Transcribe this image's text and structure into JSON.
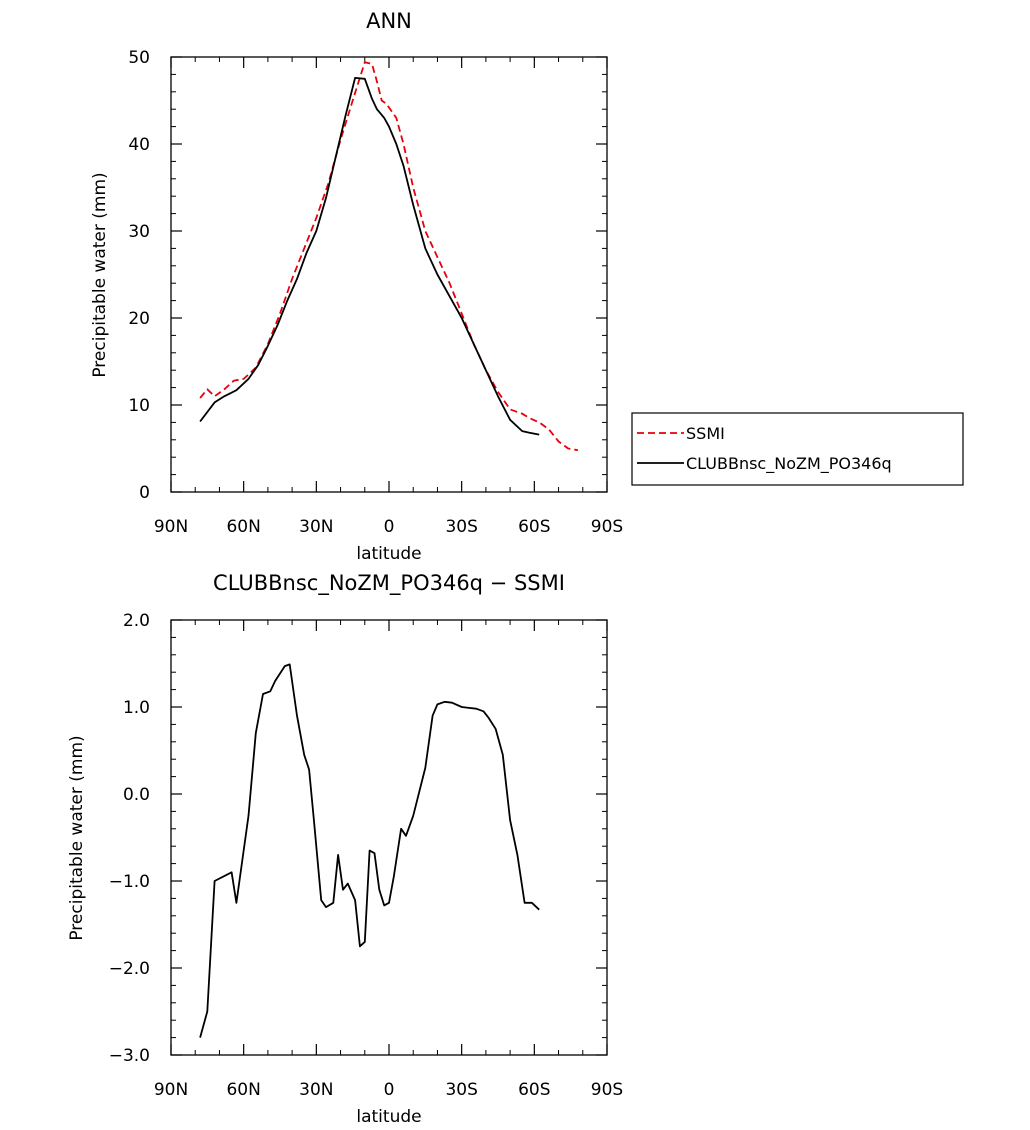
{
  "chart_data": [
    {
      "type": "line",
      "title": "ANN",
      "xlabel": "latitude",
      "ylabel": "Precipitable water (mm)",
      "xlim": [
        90,
        -90
      ],
      "ylim": [
        0,
        50
      ],
      "xticks": [
        {
          "value": 90,
          "label": "90N"
        },
        {
          "value": 60,
          "label": "60N"
        },
        {
          "value": 30,
          "label": "30N"
        },
        {
          "value": 0,
          "label": "0"
        },
        {
          "value": -30,
          "label": "30S"
        },
        {
          "value": -60,
          "label": "60S"
        },
        {
          "value": -90,
          "label": "90S"
        }
      ],
      "yticks": [
        {
          "value": 0,
          "label": "0"
        },
        {
          "value": 10,
          "label": "10"
        },
        {
          "value": 20,
          "label": "20"
        },
        {
          "value": 30,
          "label": "30"
        },
        {
          "value": 40,
          "label": "40"
        },
        {
          "value": 50,
          "label": "50"
        }
      ],
      "legend": {
        "placement": "right"
      },
      "series": [
        {
          "name": "SSMI",
          "color": "#e8000b",
          "style": "dashed",
          "x": [
            78,
            75,
            72,
            68,
            64,
            60,
            55,
            50,
            45,
            40,
            35,
            30,
            25,
            20,
            15,
            10,
            7,
            5,
            3,
            1,
            0,
            -3,
            -6,
            -10,
            -15,
            -20,
            -25,
            -30,
            -35,
            -40,
            -45,
            -50,
            -55,
            -58,
            -62,
            -66,
            -70,
            -74,
            -78
          ],
          "y": [
            10.8,
            11.8,
            11.0,
            11.8,
            12.8,
            13.0,
            14.3,
            17.0,
            20.5,
            24.5,
            28.0,
            31.5,
            35.5,
            40.5,
            45.0,
            49.4,
            49.2,
            47.2,
            45.0,
            44.6,
            44.2,
            43.0,
            40.0,
            35.0,
            30.0,
            27.0,
            24.0,
            20.5,
            17.0,
            14.0,
            11.5,
            9.5,
            9.0,
            8.5,
            8.0,
            7.2,
            5.8,
            5.0,
            4.8
          ]
        },
        {
          "name": "CLUBBnsc_NoZM_PO346q",
          "color": "#000000",
          "style": "solid",
          "x": [
            78,
            72,
            68,
            63,
            58,
            54,
            50,
            46,
            42,
            38,
            34,
            30,
            26,
            22,
            18,
            14,
            10,
            7,
            5,
            2,
            0,
            -3,
            -6,
            -10,
            -15,
            -20,
            -25,
            -30,
            -35,
            -40,
            -45,
            -50,
            -55,
            -58,
            -62
          ],
          "y": [
            8.1,
            10.3,
            11.0,
            11.7,
            13.0,
            14.6,
            16.8,
            19.2,
            22.0,
            24.5,
            27.5,
            30.0,
            33.8,
            38.5,
            43.2,
            47.6,
            47.5,
            45.2,
            44.0,
            43.0,
            42.0,
            40.0,
            37.5,
            33.0,
            28.0,
            25.0,
            22.5,
            20.0,
            17.0,
            14.0,
            11.0,
            8.3,
            7.0,
            6.8,
            6.6
          ]
        }
      ]
    },
    {
      "type": "line",
      "title": "CLUBBnsc_NoZM_PO346q − SSMI",
      "xlabel": "latitude",
      "ylabel": "Precipitable water (mm)",
      "xlim": [
        90,
        -90
      ],
      "ylim": [
        -3.0,
        2.0
      ],
      "xticks": [
        {
          "value": 90,
          "label": "90N"
        },
        {
          "value": 60,
          "label": "60N"
        },
        {
          "value": 30,
          "label": "30N"
        },
        {
          "value": 0,
          "label": "0"
        },
        {
          "value": -30,
          "label": "30S"
        },
        {
          "value": -60,
          "label": "60S"
        },
        {
          "value": -90,
          "label": "90S"
        }
      ],
      "yticks": [
        {
          "value": -3.0,
          "label": "−3.0"
        },
        {
          "value": -2.0,
          "label": "−2.0"
        },
        {
          "value": -1.0,
          "label": "−1.0"
        },
        {
          "value": 0.0,
          "label": "0.0"
        },
        {
          "value": 1.0,
          "label": "1.0"
        },
        {
          "value": 2.0,
          "label": "2.0"
        }
      ],
      "series": [
        {
          "name": "",
          "color": "#000000",
          "style": "solid",
          "x": [
            78,
            75,
            72,
            65,
            63,
            58,
            55,
            52,
            49,
            47,
            43,
            41,
            38,
            35,
            33,
            31,
            28,
            26,
            23,
            21,
            19,
            17,
            14,
            12,
            10,
            8,
            6,
            4,
            2,
            0,
            -2,
            -5,
            -7,
            -10,
            -15,
            -18,
            -20,
            -23,
            -26,
            -30,
            -33,
            -36,
            -39,
            -41,
            -44,
            -47,
            -50,
            -53,
            -56,
            -59,
            -62
          ],
          "y": [
            -2.8,
            -2.5,
            -1.0,
            -0.9,
            -1.25,
            -0.25,
            0.7,
            1.15,
            1.18,
            1.3,
            1.47,
            1.49,
            0.9,
            0.45,
            0.28,
            -0.3,
            -1.22,
            -1.3,
            -1.25,
            -0.7,
            -1.1,
            -1.03,
            -1.22,
            -1.75,
            -1.7,
            -0.65,
            -0.68,
            -1.1,
            -1.28,
            -1.25,
            -0.95,
            -0.4,
            -0.48,
            -0.25,
            0.3,
            0.9,
            1.03,
            1.06,
            1.05,
            1.0,
            0.99,
            0.98,
            0.95,
            0.88,
            0.75,
            0.45,
            -0.3,
            -0.7,
            -1.25,
            -1.25,
            -1.33
          ]
        }
      ]
    }
  ]
}
